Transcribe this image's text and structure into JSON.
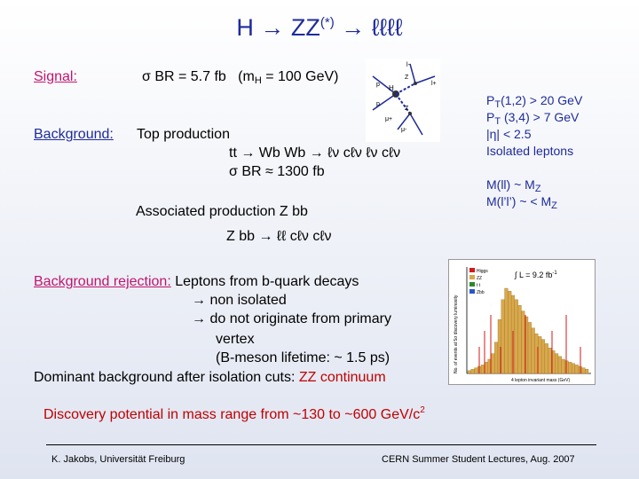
{
  "title": {
    "main": "H → ZZ",
    "sup": "(*)",
    "tail": " → ℓℓℓℓ"
  },
  "signal": {
    "label": "Signal:",
    "br_text": "σ BR = 5.7 fb",
    "mass_prefix": "(m",
    "mass_sub": "H",
    "mass_suffix": " = 100 GeV)"
  },
  "background": {
    "label": "Background:",
    "top_title": "Top production",
    "top_decay": "tt → Wb Wb → ℓν cℓν ℓν cℓν",
    "top_br": "σ BR ≈ 1300 fb",
    "assoc_title": "Associated production  Z bb",
    "assoc_decay": "Z bb → ℓℓ cℓν cℓν"
  },
  "cuts": {
    "pt12_prefix": "P",
    "pt12_sub": "T",
    "pt12_suffix": "(1,2) > 20  GeV",
    "pt34_prefix": "P",
    "pt34_sub": "T",
    "pt34_suffix": " (3,4) >  7  GeV",
    "eta": "|η| < 2.5",
    "isolated": "Isolated leptons",
    "mll_prefix": "M(ll)  ~    M",
    "mll_sub": "Z",
    "mll2_prefix": "M(l’l’) ~  < M",
    "mll2_sub": "Z"
  },
  "rejection": {
    "label": "Background rejection:",
    "line1": " Leptons from b-quark decays",
    "line2": "→ non isolated",
    "line3": "→ do not originate from primary",
    "line4": "vertex",
    "line5": "(B-meson lifetime: ~ 1.5 ps)",
    "dominant_prefix": "Dominant background after isolation cuts:  ",
    "dominant_highlight": "ZZ continuum"
  },
  "plot": {
    "legend_int": "∫ L = 9.2 fb",
    "legend_int_sup": "-1",
    "legend_items": [
      "Higgs",
      "ZZ",
      "t t",
      "Zbb"
    ],
    "legend_colors": [
      "#d11a1a",
      "#d9a84a",
      "#2a8a2a",
      "#2a56c9"
    ],
    "xlabel": "4 lepton invariant mass (GeV)",
    "ylabel": "No. of events at 5σ discovery luminosity"
  },
  "discovery": {
    "text": "Discovery potential in mass range from ~130  to ~600 GeV/c",
    "sup": "2"
  },
  "footer": {
    "left": "K. Jakobs,  Universität Freiburg",
    "right": "CERN Summer Student Lectures,  Aug. 2007"
  },
  "feynman": {
    "labels": [
      "l-",
      "l+",
      "Z",
      "H",
      "p",
      "p",
      "Z",
      "μ+",
      "μ-"
    ]
  }
}
